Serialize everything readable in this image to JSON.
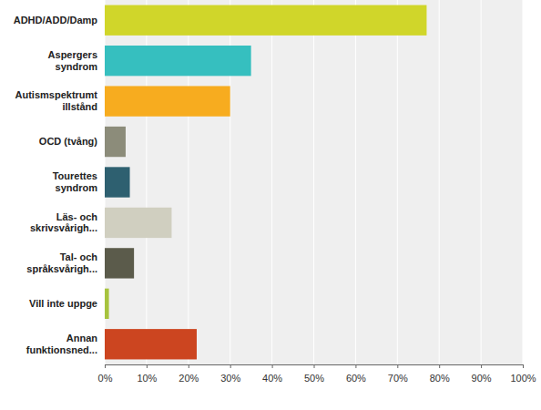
{
  "chart_data": {
    "type": "bar",
    "orientation": "horizontal",
    "categories": [
      "ADHD/ADD/Damp",
      "Aspergers syndrom",
      "Autismspektrumt illstånd",
      "OCD (tvång)",
      "Tourettes syndrom",
      "Läs- och skrivsvårigh...",
      "Tal- och språksvårigh...",
      "Vill inte uppge",
      "Annan funktionsned..."
    ],
    "values": [
      77,
      35,
      30,
      5,
      6,
      16,
      7,
      1,
      22
    ],
    "colors": [
      "#d0d62a",
      "#36bfbf",
      "#f7ac1f",
      "#8c8c7a",
      "#2e6070",
      "#d0cfc0",
      "#5b5b4b",
      "#a7c33e",
      "#cc4520"
    ],
    "xlim": [
      0,
      100
    ],
    "xticks": [
      {
        "value": 0,
        "label": "0%"
      },
      {
        "value": 10,
        "label": "10%"
      },
      {
        "value": 20,
        "label": "20%"
      },
      {
        "value": 30,
        "label": "30%"
      },
      {
        "value": 40,
        "label": "40%"
      },
      {
        "value": 50,
        "label": "50%"
      },
      {
        "value": 60,
        "label": "60%"
      },
      {
        "value": 70,
        "label": "70%"
      },
      {
        "value": 80,
        "label": "80%"
      },
      {
        "value": 90,
        "label": "90%"
      },
      {
        "value": 100,
        "label": "100%"
      }
    ],
    "grid": true
  }
}
